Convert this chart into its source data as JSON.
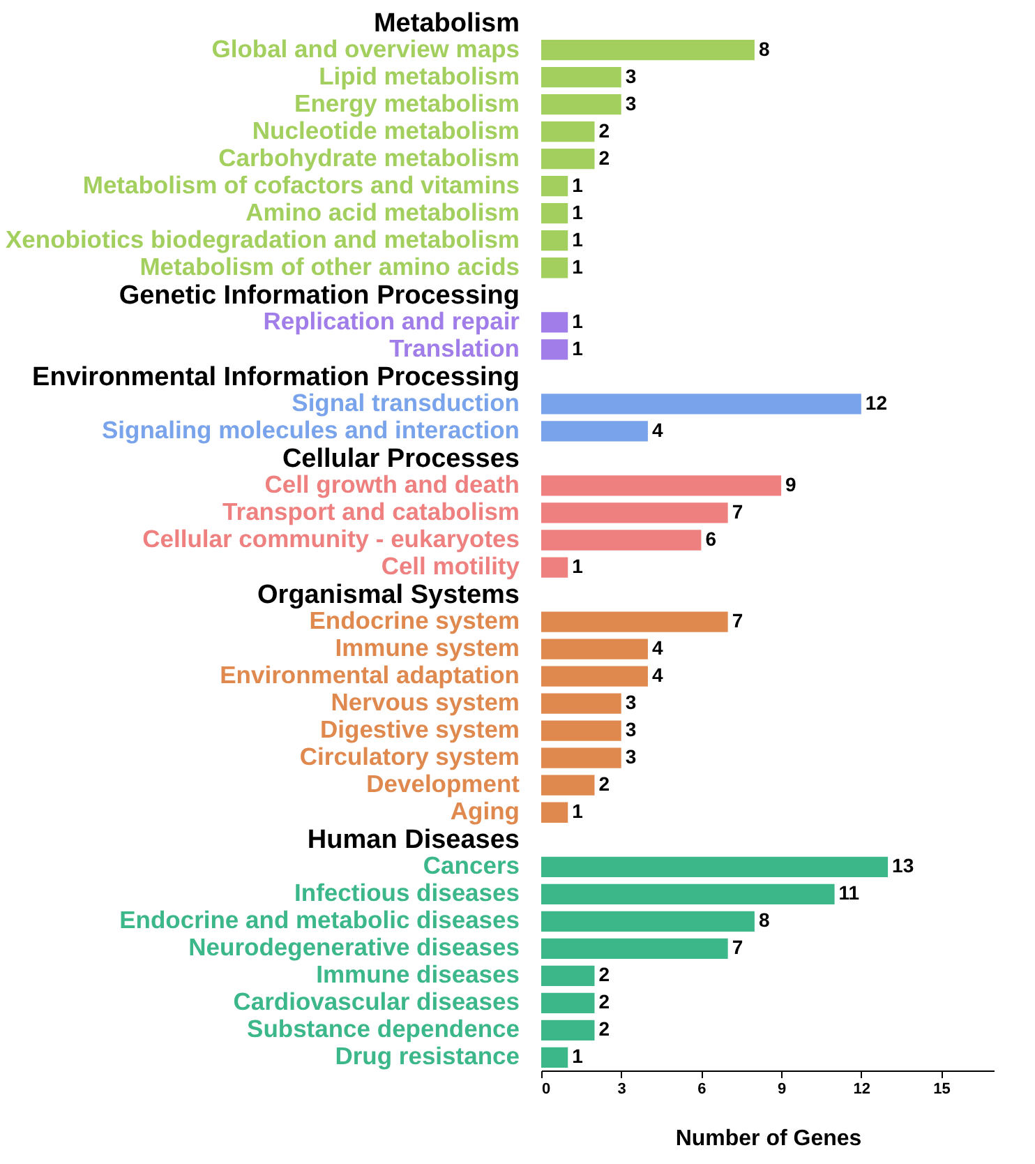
{
  "chart_data": {
    "type": "bar",
    "orientation": "horizontal",
    "xlabel": "Number of Genes",
    "categories": [
      "Metabolism",
      "Global and overview maps",
      "Lipid metabolism",
      "Energy metabolism",
      "Nucleotide metabolism",
      "Carbohydrate metabolism",
      "Metabolism of cofactors and vitamins",
      "Amino acid metabolism",
      "Xenobiotics biodegradation and metabolism",
      "Metabolism of other amino acids",
      "Genetic Information Processing",
      "Replication and repair",
      "Translation",
      "Environmental Information Processing",
      "Signal transduction",
      "Signaling molecules and interaction",
      "Cellular Processes",
      "Cell growth and death",
      "Transport and catabolism",
      "Cellular community - eukaryotes",
      "Cell motility",
      "Organismal Systems",
      "Endocrine system",
      "Immune system",
      "Environmental adaptation",
      "Nervous system",
      "Digestive system",
      "Circulatory system",
      "Development",
      "Aging",
      "Human Diseases",
      "Cancers",
      "Infectious diseases",
      "Endocrine and metabolic diseases",
      "Neurodegenerative diseases",
      "Immune diseases",
      "Cardiovascular diseases",
      "Substance dependence",
      "Drug resistance"
    ],
    "values": [
      null,
      8,
      3,
      3,
      2,
      2,
      1,
      1,
      1,
      1,
      null,
      1,
      1,
      null,
      12,
      4,
      null,
      9,
      7,
      6,
      1,
      null,
      7,
      4,
      4,
      3,
      3,
      3,
      2,
      1,
      null,
      13,
      11,
      8,
      7,
      2,
      2,
      2,
      1
    ],
    "colors": [
      "#000000",
      "#a3cf5e",
      "#a3cf5e",
      "#a3cf5e",
      "#a3cf5e",
      "#a3cf5e",
      "#a3cf5e",
      "#a3cf5e",
      "#a3cf5e",
      "#a3cf5e",
      "#000000",
      "#a07de8",
      "#a07de8",
      "#000000",
      "#79a3ea",
      "#79a3ea",
      "#000000",
      "#ef8080",
      "#ef8080",
      "#ef8080",
      "#ef8080",
      "#000000",
      "#e0894f",
      "#e0894f",
      "#e0894f",
      "#e0894f",
      "#e0894f",
      "#e0894f",
      "#e0894f",
      "#e0894f",
      "#000000",
      "#3bb78a",
      "#3bb78a",
      "#3bb78a",
      "#3bb78a",
      "#3bb78a",
      "#3bb78a",
      "#3bb78a",
      "#3bb78a"
    ],
    "xlim": [
      0,
      17
    ],
    "xticks": [
      0,
      3,
      6,
      9,
      12,
      15
    ],
    "data_labels": true,
    "grid": false
  }
}
